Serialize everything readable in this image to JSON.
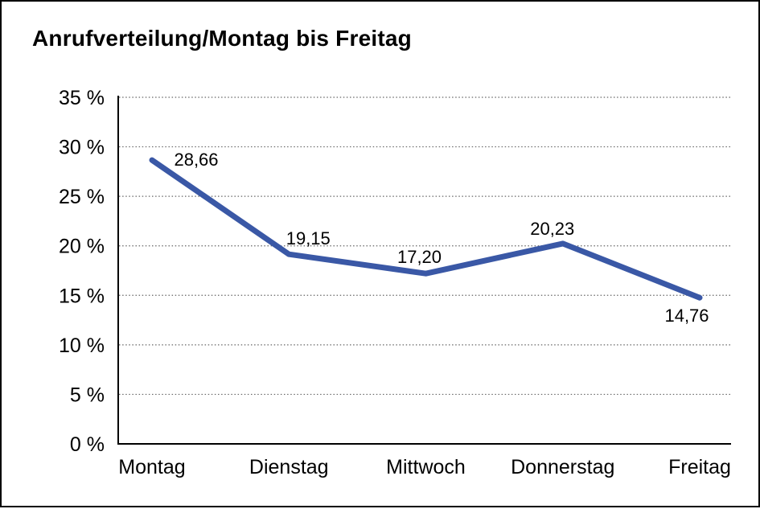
{
  "title": "Anrufverteilung/Montag bis Freitag",
  "colors": {
    "line": "#3A58A6",
    "grid": "#666666",
    "axis": "#000000",
    "text": "#000000",
    "background": "#FFFFFF",
    "border": "#000000"
  },
  "chart_data": {
    "type": "line",
    "title": "Anrufverteilung/Montag bis Freitag",
    "categories": [
      "Montag",
      "Dienstag",
      "Mittwoch",
      "Donnerstag",
      "Freitag"
    ],
    "values": [
      28.66,
      19.15,
      17.2,
      20.23,
      14.76
    ],
    "value_labels": [
      "28,66",
      "19,15",
      "17,20",
      "20,23",
      "14,76"
    ],
    "xlabel": "",
    "ylabel": "",
    "ylim": [
      0,
      35
    ],
    "y_tick_step": 5,
    "y_tick_labels": [
      "0 %",
      "5 %",
      "10 %",
      "15 %",
      "20 %",
      "25 %",
      "30 %",
      "35 %"
    ],
    "grid": "horizontal-dotted",
    "legend": "none"
  }
}
